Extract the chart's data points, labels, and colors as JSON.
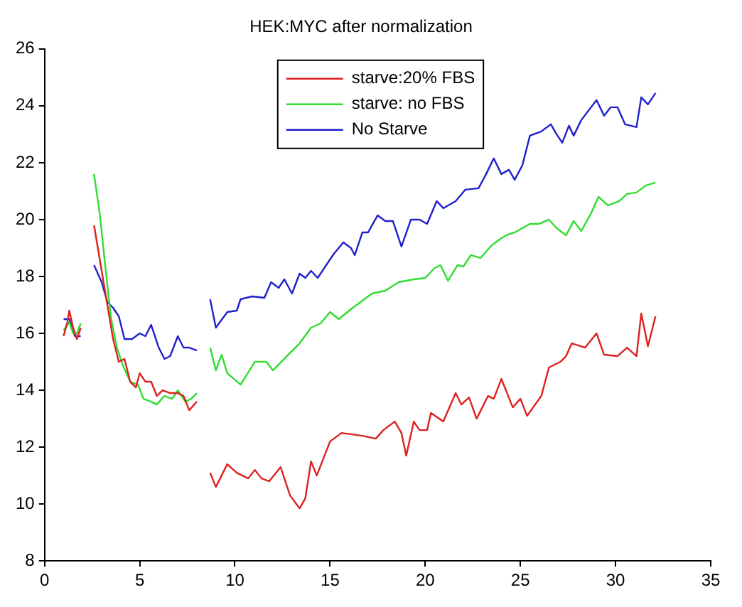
{
  "chart_data": {
    "type": "line",
    "title": "HEK:MYC after normalization",
    "xlim": [
      0,
      35
    ],
    "xticks": [
      0,
      5,
      10,
      15,
      20,
      25,
      30,
      35
    ],
    "ylim": [
      8,
      26
    ],
    "yticks": [
      8,
      10,
      12,
      14,
      16,
      18,
      20,
      22,
      24,
      26
    ],
    "grid": false,
    "legend": "top",
    "marker": "none",
    "line_style": "solid",
    "series": [
      {
        "name": "starve:20% FBS",
        "color": "#dd2020",
        "x": [
          1.0,
          1.2,
          1.3,
          1.5,
          1.7,
          1.9,
          2.2,
          2.6,
          3.0,
          3.3,
          3.6,
          3.9,
          4.2,
          4.5,
          4.8,
          5.0,
          5.3,
          5.6,
          5.9,
          6.2,
          6.6,
          7.0,
          7.3,
          7.6,
          8.0,
          8.3,
          8.7,
          9.0,
          9.6,
          10.1,
          10.7,
          11.05,
          11.4,
          11.8,
          12.4,
          12.9,
          13.4,
          13.7,
          14.0,
          14.3,
          15.0,
          15.6,
          16.7,
          17.4,
          17.8,
          18.4,
          18.75,
          19.0,
          19.4,
          19.7,
          20.1,
          20.3,
          20.95,
          21.6,
          21.9,
          22.3,
          22.7,
          23.3,
          23.6,
          24.0,
          24.6,
          25.0,
          25.35,
          26.1,
          26.5,
          27.1,
          27.4,
          27.7,
          28.4,
          29.0,
          29.4,
          30.1,
          30.6,
          31.1,
          31.35,
          31.7,
          32.1
        ],
        "values": [
          15.9,
          16.4,
          16.8,
          16.2,
          15.8,
          16.2,
          null,
          19.8,
          18.2,
          17.0,
          15.8,
          15.0,
          15.1,
          14.3,
          14.1,
          14.6,
          14.3,
          14.3,
          13.8,
          14.0,
          13.9,
          13.9,
          13.8,
          13.3,
          13.6,
          null,
          11.1,
          10.6,
          11.4,
          11.1,
          10.9,
          11.2,
          10.9,
          10.8,
          11.3,
          10.3,
          9.85,
          10.2,
          11.5,
          11.0,
          12.2,
          12.5,
          12.4,
          12.3,
          12.6,
          12.9,
          12.5,
          11.7,
          12.9,
          12.6,
          12.6,
          13.2,
          12.9,
          13.9,
          13.5,
          13.75,
          13.0,
          13.8,
          13.7,
          14.4,
          13.4,
          13.7,
          13.1,
          13.8,
          14.8,
          15.0,
          15.2,
          15.65,
          15.5,
          16.0,
          15.25,
          15.2,
          15.5,
          15.2,
          16.7,
          15.55,
          16.6
        ]
      },
      {
        "name": "starve: no FBS",
        "color": "#30dd30",
        "x": [
          1.0,
          1.3,
          1.5,
          1.7,
          1.9,
          2.2,
          2.6,
          2.9,
          3.2,
          3.5,
          3.8,
          4.1,
          4.5,
          4.9,
          5.2,
          5.6,
          5.9,
          6.3,
          6.7,
          7.0,
          7.4,
          7.7,
          8.0,
          8.3,
          8.7,
          9.0,
          9.3,
          9.6,
          10.3,
          11.05,
          11.65,
          12.0,
          12.8,
          13.4,
          14.0,
          14.5,
          15.0,
          15.45,
          16.1,
          16.7,
          17.2,
          17.9,
          18.6,
          19.4,
          20.0,
          20.5,
          20.8,
          21.2,
          21.7,
          22.0,
          22.4,
          22.9,
          23.5,
          23.9,
          24.25,
          24.7,
          25.1,
          25.5,
          26.0,
          26.5,
          26.9,
          27.4,
          27.8,
          28.2,
          28.7,
          29.1,
          29.6,
          30.2,
          30.6,
          31.1,
          31.6,
          32.1
        ],
        "values": [
          16.1,
          16.4,
          16.0,
          16.0,
          16.35,
          null,
          21.6,
          20.2,
          18.3,
          16.5,
          15.5,
          14.9,
          14.3,
          14.2,
          13.7,
          13.6,
          13.5,
          13.8,
          13.7,
          14.0,
          13.6,
          13.7,
          13.9,
          null,
          15.5,
          14.7,
          15.25,
          14.6,
          14.2,
          15.0,
          15.0,
          14.7,
          15.25,
          15.65,
          16.2,
          16.35,
          16.75,
          16.5,
          16.85,
          17.15,
          17.4,
          17.5,
          17.8,
          17.9,
          17.95,
          18.3,
          18.4,
          17.85,
          18.4,
          18.35,
          18.75,
          18.65,
          19.1,
          19.3,
          19.45,
          19.55,
          19.7,
          19.85,
          19.85,
          20.0,
          19.7,
          19.45,
          19.95,
          19.6,
          20.2,
          20.8,
          20.5,
          20.65,
          20.9,
          20.95,
          21.2,
          21.3
        ]
      },
      {
        "name": "No Starve",
        "color": "#2020cc",
        "x": [
          1.0,
          1.3,
          1.6,
          1.9,
          2.2,
          2.6,
          3.0,
          3.3,
          3.6,
          3.9,
          4.2,
          4.6,
          5.0,
          5.3,
          5.6,
          6.0,
          6.3,
          6.6,
          7.0,
          7.3,
          7.6,
          8.0,
          8.3,
          8.7,
          9.0,
          9.6,
          10.1,
          10.3,
          10.9,
          11.55,
          11.9,
          12.3,
          12.6,
          13.0,
          13.4,
          13.7,
          14.0,
          14.35,
          15.2,
          15.7,
          16.1,
          16.3,
          16.7,
          17.0,
          17.5,
          17.9,
          18.3,
          18.75,
          19.25,
          19.7,
          20.1,
          20.6,
          20.95,
          21.6,
          22.1,
          22.8,
          23.2,
          23.6,
          24.0,
          24.4,
          24.7,
          25.1,
          25.5,
          26.1,
          26.6,
          26.9,
          27.2,
          27.55,
          27.8,
          28.2,
          29.0,
          29.4,
          29.75,
          30.1,
          30.5,
          31.1,
          31.35,
          31.7,
          32.1
        ],
        "values": [
          16.5,
          16.5,
          15.9,
          15.9,
          null,
          18.4,
          17.8,
          17.1,
          16.9,
          16.6,
          15.8,
          15.8,
          16.0,
          15.9,
          16.3,
          15.5,
          15.1,
          15.2,
          15.9,
          15.5,
          15.5,
          15.4,
          null,
          17.2,
          16.2,
          16.75,
          16.8,
          17.2,
          17.3,
          17.25,
          17.8,
          17.6,
          17.9,
          17.4,
          18.1,
          17.95,
          18.2,
          17.95,
          18.8,
          19.2,
          19.0,
          18.75,
          19.55,
          19.55,
          20.15,
          19.95,
          19.95,
          19.05,
          20.0,
          20.0,
          19.85,
          20.65,
          20.4,
          20.65,
          21.05,
          21.1,
          21.6,
          22.15,
          21.6,
          21.75,
          21.4,
          21.9,
          22.95,
          23.1,
          23.35,
          23.0,
          22.7,
          23.3,
          22.95,
          23.5,
          24.2,
          23.65,
          23.95,
          23.95,
          23.35,
          23.25,
          24.3,
          24.05,
          24.45
        ]
      }
    ]
  }
}
